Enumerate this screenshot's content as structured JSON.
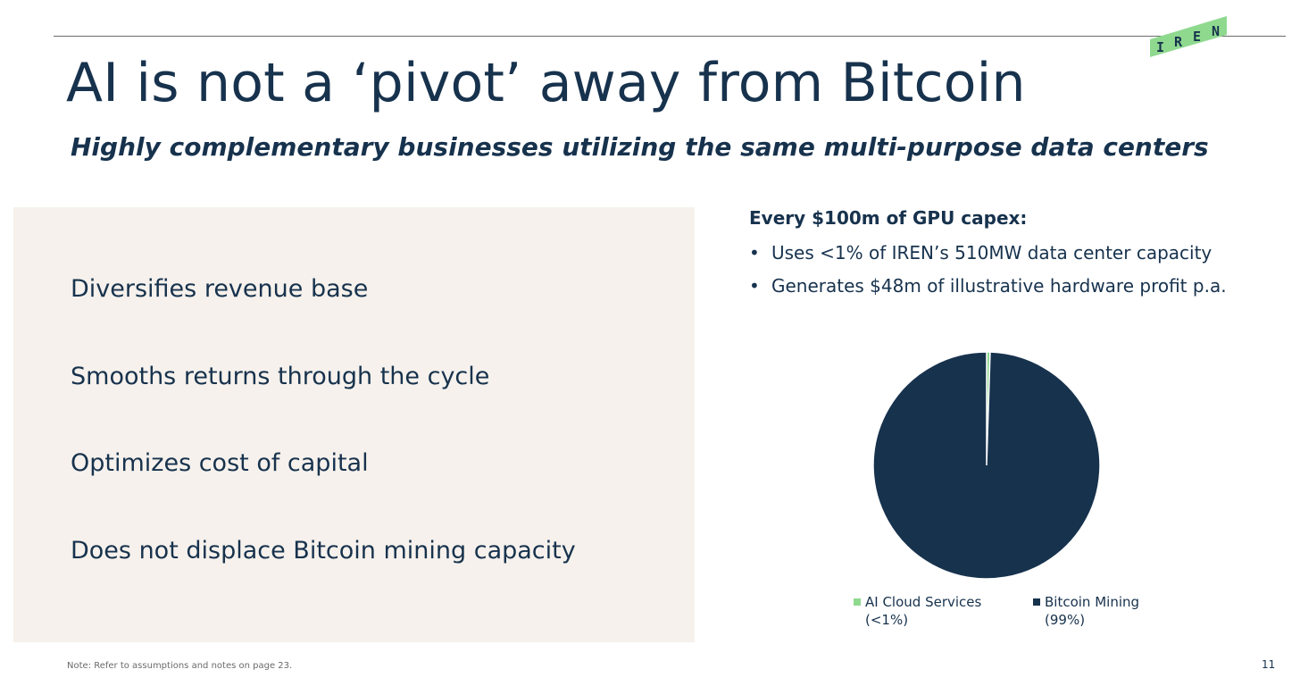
{
  "logo": {
    "text": "IREN",
    "letters": [
      "I",
      "R",
      "E",
      "N"
    ],
    "color": "#8fd98f"
  },
  "title": "AI is not a ‘pivot’ away from Bitcoin",
  "subtitle": "Highly complementary businesses utilizing the same multi-purpose data centers",
  "benefits": [
    "Diversifies revenue base",
    "Smooths returns through the cycle",
    "Optimizes cost of capital",
    "Does not displace Bitcoin mining capacity"
  ],
  "capex": {
    "heading": "Every $100m of GPU capex:",
    "bullets": [
      "Uses <1% of IREN’s 510MW data center capacity",
      "Generates $48m of illustrative hardware profit p.a."
    ]
  },
  "chart_data": {
    "type": "pie",
    "categories": [
      "AI Cloud Services",
      "Bitcoin Mining"
    ],
    "values": [
      0.5,
      99.5
    ],
    "value_labels": [
      "(<1%)",
      "(99%)"
    ],
    "colors": [
      "#8fd98f",
      "#17324d"
    ],
    "legend_position": "bottom"
  },
  "footer": {
    "note": "Note: Refer to assumptions and notes on page 23.",
    "page_number": "11"
  },
  "colors": {
    "navy": "#17324d",
    "panel": "#f6f1ec",
    "accent_green": "#8fd98f"
  }
}
